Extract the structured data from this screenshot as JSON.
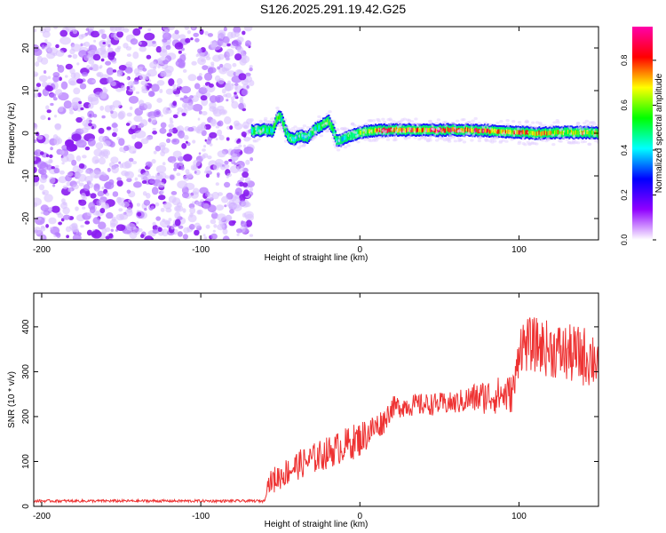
{
  "title": "S126.2025.291.19.42.G25",
  "chart_data": [
    {
      "type": "heatmap",
      "name": "spectrogram",
      "xlabel": "Height of straight line (km)",
      "ylabel": "Frequency (Hz)",
      "xlim": [
        -205,
        150
      ],
      "ylim": [
        -25,
        25
      ],
      "xticks": [
        -200,
        -100,
        0,
        100
      ],
      "yticks": [
        -20,
        -10,
        0,
        10,
        20
      ],
      "noise_region_x": [
        -205,
        -68
      ],
      "signal_region_x": [
        -68,
        150
      ],
      "signal_trace": {
        "x": [
          -68,
          -60,
          -55,
          -52,
          -50,
          -47,
          -45,
          -42,
          -38,
          -33,
          -28,
          -24,
          -20,
          -17,
          -15,
          -12,
          -8,
          0,
          10,
          20,
          40,
          60,
          80,
          90,
          100,
          110,
          130,
          150
        ],
        "y": [
          0.5,
          0.8,
          0.5,
          3.5,
          4.0,
          0.8,
          -0.8,
          -1.5,
          -0.5,
          -1.0,
          1.0,
          1.8,
          3.0,
          1.0,
          -1.5,
          -1.8,
          -0.8,
          0.2,
          0.6,
          0.8,
          0.7,
          0.8,
          0.6,
          0.4,
          0.2,
          0.0,
          0.2,
          0.1
        ],
        "amp": [
          0.5,
          0.55,
          0.5,
          0.6,
          0.5,
          0.5,
          0.45,
          0.5,
          0.5,
          0.45,
          0.5,
          0.55,
          0.6,
          0.55,
          0.5,
          0.45,
          0.5,
          0.6,
          0.8,
          0.9,
          0.85,
          0.9,
          0.85,
          0.75,
          0.8,
          0.75,
          0.7,
          0.7
        ]
      },
      "colorbar": {
        "label": "Normalized spectral amplitude",
        "range": [
          0,
          0.95
        ],
        "ticks": [
          "0.0",
          "0.2",
          "0.4",
          "0.6",
          "0.8"
        ],
        "colors": [
          "#ffffff",
          "#9000ff",
          "#0000ff",
          "#00ffff",
          "#00ff00",
          "#ffff00",
          "#ff0000",
          "#ff00aa"
        ]
      }
    },
    {
      "type": "line",
      "name": "snr",
      "xlabel": "Height of straight line (km)",
      "ylabel": "SNR (10 * v/v)",
      "xlim": [
        -205,
        150
      ],
      "ylim": [
        0,
        475
      ],
      "xticks": [
        -200,
        -100,
        0,
        100
      ],
      "yticks": [
        0,
        100,
        200,
        300,
        400
      ],
      "color": "#ee3333",
      "trend_x": [
        -205,
        -60,
        -58,
        -40,
        -20,
        0,
        15,
        20,
        30,
        60,
        70,
        80,
        95,
        98,
        100,
        110,
        120,
        130,
        150
      ],
      "trend_y": [
        12,
        12,
        50,
        90,
        120,
        150,
        190,
        220,
        225,
        230,
        240,
        245,
        250,
        280,
        360,
        360,
        350,
        340,
        330
      ],
      "noise_x": [
        -205,
        -60,
        -55,
        0,
        20,
        60,
        80,
        98,
        100,
        150
      ],
      "noise_amp": [
        3,
        3,
        30,
        40,
        25,
        25,
        40,
        45,
        60,
        70
      ]
    }
  ]
}
